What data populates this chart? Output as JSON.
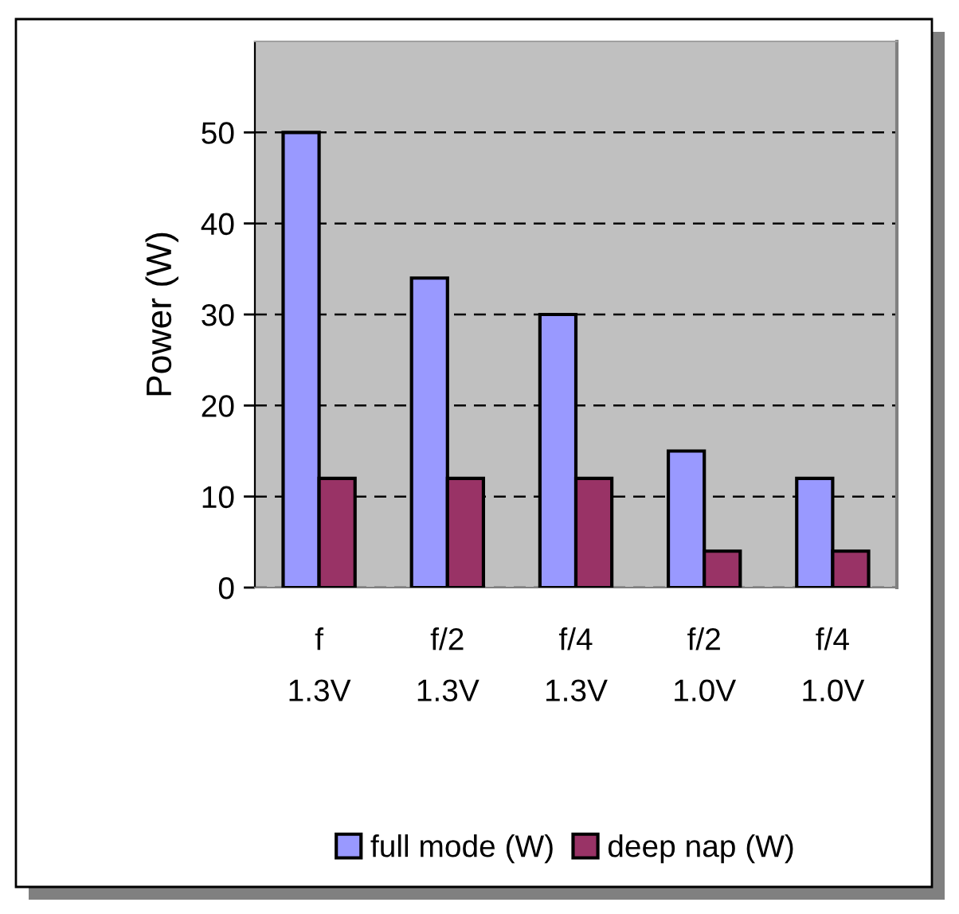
{
  "chart_data": {
    "type": "bar",
    "ylabel": "Power (W)",
    "categories": [
      "f\n1.3V",
      "f/2\n1.3V",
      "f/4\n1.3V",
      "f/2\n1.0V",
      "f/4\n1.0V"
    ],
    "series": [
      {
        "name": "full mode (W)",
        "color": "#9999ff",
        "values": [
          50,
          34,
          30,
          15,
          12
        ]
      },
      {
        "name": "deep nap (W)",
        "color": "#993366",
        "values": [
          12,
          12,
          12,
          4,
          4
        ]
      }
    ],
    "ylim": [
      0,
      60
    ],
    "yticks": [
      0,
      10,
      20,
      30,
      40,
      50
    ],
    "grid": "y",
    "legend": "bottom"
  }
}
